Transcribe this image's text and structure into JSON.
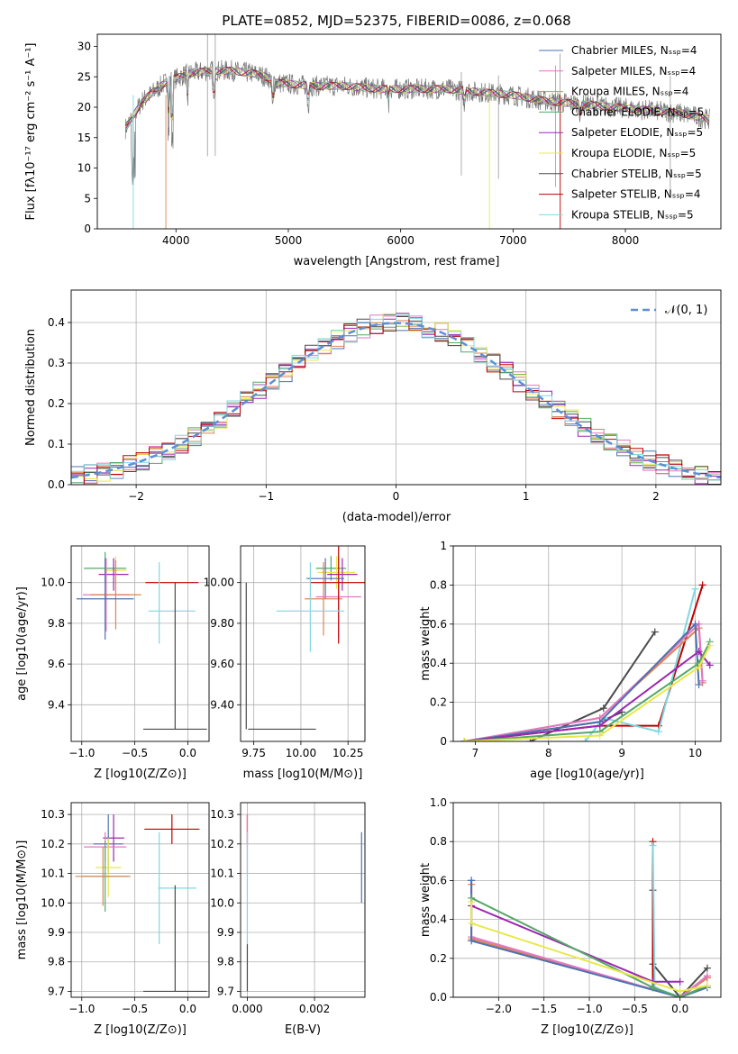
{
  "chart_data": [
    {
      "type": "line",
      "title": "PLATE=0852, MJD=52375, FIBERID=0086, z=0.068",
      "xlabel": "wavelength [Angstrom, rest frame]",
      "ylabel": "Flux [fλ10⁻¹⁷ erg cm⁻² s⁻¹ A⁻¹]",
      "xlim": [
        3300,
        8850
      ],
      "ylim": [
        0,
        32
      ],
      "xticks": [
        4000,
        5000,
        6000,
        7000,
        8000
      ],
      "yticks": [
        0,
        5,
        10,
        15,
        20,
        25,
        30
      ],
      "grid": false,
      "legend_position": "upper-right",
      "series": [
        {
          "name": "Chabrier MILES, Nₛₛₚ=4",
          "color": "#4c72b0"
        },
        {
          "name": "Salpeter MILES, Nₛₛₚ=4",
          "color": "#e377c2"
        },
        {
          "name": "Kroupa MILES, Nₛₛₚ=4",
          "color": "#dd8452"
        },
        {
          "name": "Chabrier ELODIE, Nₛₛₚ=5",
          "color": "#55a868"
        },
        {
          "name": "Salpeter ELODIE, Nₛₛₚ=5",
          "color": "#9c27b0"
        },
        {
          "name": "Kroupa ELODIE, Nₛₛₚ=5",
          "color": "#e8e84a"
        },
        {
          "name": "Chabrier STELIB, Nₛₛₚ=5",
          "color": "#4a4a4a"
        },
        {
          "name": "Salpeter STELIB, Nₛₛₚ=4",
          "color": "#c00000"
        },
        {
          "name": "Kroupa STELIB, Nₛₛₚ=5",
          "color": "#7fd8e0"
        }
      ],
      "continuum": {
        "x": [
          3550,
          3700,
          3900,
          4100,
          4300,
          4500,
          4700,
          4800,
          4900,
          5200,
          5500,
          5800,
          6100,
          6400,
          6700,
          7000,
          7300,
          7600,
          7900,
          8200,
          8500,
          8750
        ],
        "y": [
          16.5,
          21,
          24,
          25.5,
          26,
          26,
          25.5,
          25,
          24,
          23.5,
          23.5,
          23,
          23,
          23,
          22.5,
          22,
          21,
          20.5,
          20,
          19.5,
          19,
          18
        ]
      }
    },
    {
      "type": "line",
      "title": "",
      "xlabel": "(data-model)/error",
      "ylabel": "Normed distribution",
      "xlim": [
        -2.5,
        2.5
      ],
      "ylim": [
        0,
        0.48
      ],
      "xticks": [
        -2,
        -1,
        0,
        1,
        2
      ],
      "yticks": [
        0.0,
        0.1,
        0.2,
        0.3,
        0.4
      ],
      "grid": true,
      "legend_position": "upper-right",
      "legend": "𝒩(0, 1)",
      "gaussian": {
        "mu": 0,
        "sigma": 1,
        "color": "#5b8fd8"
      }
    },
    {
      "type": "scatter",
      "xlabel": "Z [log10(Z/Z⊙)]",
      "ylabel": "age  [log10(age/yr)]",
      "xlim": [
        -1.1,
        0.2
      ],
      "ylim": [
        9.22,
        10.18
      ],
      "xticks": [
        -1.0,
        -0.5,
        0.0
      ],
      "yticks": [
        9.4,
        9.6,
        9.8,
        10.0
      ],
      "grid": true,
      "points": [
        {
          "x": -0.78,
          "y": 10.07,
          "xerr": 0.2,
          "yerr": 0.08,
          "color": "#55a868"
        },
        {
          "x": -0.68,
          "y": 10.06,
          "xerr": 0.1,
          "yerr": 0.07,
          "color": "#e8e84a"
        },
        {
          "x": -0.7,
          "y": 10.04,
          "xerr": 0.14,
          "yerr": 0.08,
          "color": "#9c27b0"
        },
        {
          "x": -0.77,
          "y": 9.94,
          "xerr": 0.22,
          "yerr": 0.18,
          "color": "#e377c2"
        },
        {
          "x": -0.68,
          "y": 9.94,
          "xerr": 0.24,
          "yerr": 0.17,
          "color": "#dd8452"
        },
        {
          "x": -0.78,
          "y": 9.92,
          "xerr": 0.27,
          "yerr": 0.2,
          "color": "#4c72b0"
        },
        {
          "x": -0.15,
          "y": 10.0,
          "xerr": 0.25,
          "yerr": 0.0,
          "color": "#c00000"
        },
        {
          "x": -0.15,
          "y": 9.86,
          "xerr": 0.22,
          "yerr": 0.0,
          "color": "#7fd8e0"
        },
        {
          "x": -0.27,
          "y": 9.9,
          "xerr": 0.0,
          "yerr": 0.2,
          "color": "#7fd8e0"
        },
        {
          "x": -0.12,
          "y": 9.28,
          "xerr": 0.3,
          "yerr": 0.0,
          "color": "#4a4a4a"
        },
        {
          "x": -0.12,
          "y": 9.64,
          "xerr": 0.0,
          "yerr": 0.36,
          "color": "#4a4a4a"
        }
      ]
    },
    {
      "type": "scatter",
      "xlabel": "mass [log10(M/M⊙)]",
      "ylabel": "",
      "xlim": [
        9.68,
        10.34
      ],
      "ylim": [
        9.22,
        10.18
      ],
      "xticks": [
        9.75,
        10.0,
        10.25
      ],
      "yticks": [
        9.4,
        9.6,
        9.8,
        10.0
      ],
      "grid": true,
      "points": [
        {
          "x": 10.16,
          "y": 10.07,
          "xerr": 0.08,
          "yerr": 0.06,
          "color": "#55a868"
        },
        {
          "x": 10.19,
          "y": 10.05,
          "xerr": 0.1,
          "yerr": 0.08,
          "color": "#e8e84a"
        },
        {
          "x": 10.22,
          "y": 10.04,
          "xerr": 0.08,
          "yerr": 0.08,
          "color": "#9c27b0"
        },
        {
          "x": 10.13,
          "y": 10.02,
          "xerr": 0.1,
          "yerr": 0.1,
          "color": "#4c72b0"
        },
        {
          "x": 10.2,
          "y": 9.93,
          "xerr": 0.12,
          "yerr": 0.2,
          "color": "#e377c2"
        },
        {
          "x": 10.12,
          "y": 9.92,
          "xerr": 0.1,
          "yerr": 0.18,
          "color": "#dd8452"
        },
        {
          "x": 10.2,
          "y": 10.0,
          "xerr": 0.15,
          "yerr": 0.3,
          "color": "#c00000"
        },
        {
          "x": 10.05,
          "y": 9.86,
          "xerr": 0.18,
          "yerr": 0.0,
          "color": "#7fd8e0"
        },
        {
          "x": 10.05,
          "y": 9.88,
          "xerr": 0.0,
          "yerr": 0.22,
          "color": "#7fd8e0"
        },
        {
          "x": 9.9,
          "y": 9.28,
          "xerr": 0.18,
          "yerr": 0.0,
          "color": "#4a4a4a"
        },
        {
          "x": 9.71,
          "y": 9.64,
          "xerr": 0.0,
          "yerr": 0.36,
          "color": "#4a4a4a"
        }
      ]
    },
    {
      "type": "line",
      "xlabel": "age  [log10(age/yr)]",
      "ylabel": "mass weight",
      "xlim": [
        6.7,
        10.35
      ],
      "ylim": [
        0,
        1.0
      ],
      "xticks": [
        7,
        8,
        9,
        10
      ],
      "yticks": [
        0.0,
        0.2,
        0.4,
        0.6,
        0.8,
        1.0
      ],
      "grid": true,
      "series": [
        {
          "color": "#4a4a4a",
          "x": [
            7.75,
            8.75,
            9.45
          ],
          "y": [
            0.0,
            0.17,
            0.56
          ]
        },
        {
          "color": "#4a4a4a",
          "x": [
            6.85,
            8.7,
            9.0
          ],
          "y": [
            0.0,
            0.1,
            0.15
          ]
        },
        {
          "color": "#c00000",
          "x": [
            6.85,
            8.7,
            9.5,
            10.1
          ],
          "y": [
            0.0,
            0.08,
            0.08,
            0.8
          ]
        },
        {
          "color": "#7fd8e0",
          "x": [
            8.5,
            8.75,
            9.5,
            10.0
          ],
          "y": [
            0.0,
            0.12,
            0.05,
            0.78
          ]
        },
        {
          "color": "#dd8452",
          "x": [
            6.85,
            8.7,
            10.05,
            10.1
          ],
          "y": [
            0.0,
            0.12,
            0.58,
            0.3
          ]
        },
        {
          "color": "#e377c2",
          "x": [
            6.85,
            8.7,
            10.05,
            10.1
          ],
          "y": [
            0.0,
            0.12,
            0.6,
            0.31
          ]
        },
        {
          "color": "#4c72b0",
          "x": [
            6.85,
            8.7,
            10.0,
            10.05
          ],
          "y": [
            0.0,
            0.1,
            0.6,
            0.29
          ]
        },
        {
          "color": "#9c27b0",
          "x": [
            6.85,
            8.7,
            10.05,
            10.2
          ],
          "y": [
            0.0,
            0.08,
            0.46,
            0.39
          ]
        },
        {
          "color": "#55a868",
          "x": [
            6.85,
            8.7,
            10.05,
            10.2
          ],
          "y": [
            0.0,
            0.05,
            0.4,
            0.51
          ]
        },
        {
          "color": "#e8e84a",
          "x": [
            6.85,
            8.7,
            10.05,
            10.2
          ],
          "y": [
            0.0,
            0.03,
            0.38,
            0.49
          ]
        }
      ]
    },
    {
      "type": "scatter",
      "xlabel": "Z [log10(Z/Z⊙)]",
      "ylabel": "mass [log10(M/M⊙)]",
      "xlim": [
        -1.1,
        0.2
      ],
      "ylim": [
        9.68,
        10.34
      ],
      "xticks": [
        -1.0,
        -0.5,
        0.0
      ],
      "yticks": [
        9.7,
        9.8,
        9.9,
        10.0,
        10.1,
        10.2,
        10.3
      ],
      "grid": true,
      "points": [
        {
          "x": -0.7,
          "y": 10.22,
          "xerr": 0.1,
          "yerr": 0.08,
          "color": "#9c27b0"
        },
        {
          "x": -0.75,
          "y": 10.2,
          "xerr": 0.14,
          "yerr": 0.1,
          "color": "#4c72b0"
        },
        {
          "x": -0.78,
          "y": 10.19,
          "xerr": 0.2,
          "yerr": 0.05,
          "color": "#e377c2"
        },
        {
          "x": -0.75,
          "y": 10.12,
          "xerr": 0.12,
          "yerr": 0.1,
          "color": "#e8e84a"
        },
        {
          "x": -0.78,
          "y": 10.09,
          "xerr": 0.22,
          "yerr": 0.12,
          "color": "#55a868"
        },
        {
          "x": -0.8,
          "y": 10.09,
          "xerr": 0.26,
          "yerr": 0.1,
          "color": "#dd8452"
        },
        {
          "x": -0.15,
          "y": 10.25,
          "xerr": 0.26,
          "yerr": 0.05,
          "color": "#c00000"
        },
        {
          "x": -0.1,
          "y": 10.05,
          "xerr": 0.18,
          "yerr": 0.0,
          "color": "#7fd8e0"
        },
        {
          "x": -0.27,
          "y": 10.05,
          "xerr": 0.0,
          "yerr": 0.19,
          "color": "#7fd8e0"
        },
        {
          "x": -0.12,
          "y": 9.7,
          "xerr": 0.3,
          "yerr": 0.0,
          "color": "#4a4a4a"
        },
        {
          "x": -0.12,
          "y": 9.88,
          "xerr": 0.0,
          "yerr": 0.18,
          "color": "#4a4a4a"
        }
      ]
    },
    {
      "type": "scatter",
      "xlabel": "E(B-V)",
      "ylabel": "",
      "xlim": [
        -0.0002,
        0.0035
      ],
      "ylim": [
        9.68,
        10.34
      ],
      "xticks": [
        0.0,
        0.002
      ],
      "xticklabels": [
        "0.000",
        "0.002"
      ],
      "yticks": [
        9.7,
        9.8,
        9.9,
        10.0,
        10.1,
        10.2,
        10.3
      ],
      "grid": true,
      "points": [
        {
          "x": 0.0,
          "y": 10.25,
          "xerr": 0.0,
          "yerr": 0.05,
          "color": "#c00000"
        },
        {
          "x": 0.0,
          "y": 10.2,
          "xerr": 0.0,
          "yerr": 0.1,
          "color": "#e377c2"
        },
        {
          "x": 0.0,
          "y": 10.05,
          "xerr": 0.0,
          "yerr": 0.19,
          "color": "#7fd8e0"
        },
        {
          "x": 0.0,
          "y": 9.78,
          "xerr": 0.0,
          "yerr": 0.08,
          "color": "#4a4a4a"
        },
        {
          "x": 0.0034,
          "y": 10.12,
          "xerr": 0.0,
          "yerr": 0.12,
          "color": "#4c72b0"
        }
      ]
    },
    {
      "type": "line",
      "xlabel": "Z [log10(Z/Z⊙)]",
      "ylabel": "mass weight",
      "xlim": [
        -2.5,
        0.45
      ],
      "ylim": [
        0,
        1.0
      ],
      "xticks": [
        -2.0,
        -1.5,
        -1.0,
        -0.5,
        0.0
      ],
      "xticklabels": [
        "−2.0",
        "−1.5",
        "−1.0",
        "−0.5",
        "0.0"
      ],
      "yticks": [
        0.0,
        0.2,
        0.4,
        0.6,
        0.8,
        1.0
      ],
      "grid": true,
      "series": [
        {
          "color": "#4a4a4a",
          "x": [
            -0.3,
            -0.3,
            0.0,
            0.3
          ],
          "y": [
            0.55,
            0.17,
            0.0,
            0.15
          ]
        },
        {
          "color": "#c00000",
          "x": [
            -0.3,
            -0.3,
            0.0,
            0.3
          ],
          "y": [
            0.8,
            0.05,
            0.0,
            0.1
          ]
        },
        {
          "color": "#7fd8e0",
          "x": [
            -0.3,
            -0.28,
            0.0,
            0.3
          ],
          "y": [
            0.78,
            0.05,
            0.0,
            0.06
          ]
        },
        {
          "color": "#dd8452",
          "x": [
            -2.3,
            -2.3,
            0.0,
            0.3
          ],
          "y": [
            0.58,
            0.3,
            0.0,
            0.1
          ]
        },
        {
          "color": "#e377c2",
          "x": [
            -2.3,
            -2.3,
            0.0,
            0.3
          ],
          "y": [
            0.6,
            0.31,
            0.0,
            0.11
          ]
        },
        {
          "color": "#4c72b0",
          "x": [
            -2.3,
            -2.3,
            0.0,
            0.3
          ],
          "y": [
            0.6,
            0.29,
            0.0,
            0.05
          ]
        },
        {
          "color": "#9c27b0",
          "x": [
            -2.3,
            -0.3,
            0.0
          ],
          "y": [
            0.47,
            0.08,
            0.08
          ]
        },
        {
          "color": "#55a868",
          "x": [
            -2.3,
            -0.3,
            0.0,
            0.3
          ],
          "y": [
            0.51,
            0.05,
            0.0,
            0.06
          ]
        },
        {
          "color": "#e8e84a",
          "x": [
            -2.3,
            -2.3,
            0.0,
            0.3
          ],
          "y": [
            0.49,
            0.38,
            0.03,
            0.06
          ]
        }
      ]
    }
  ]
}
